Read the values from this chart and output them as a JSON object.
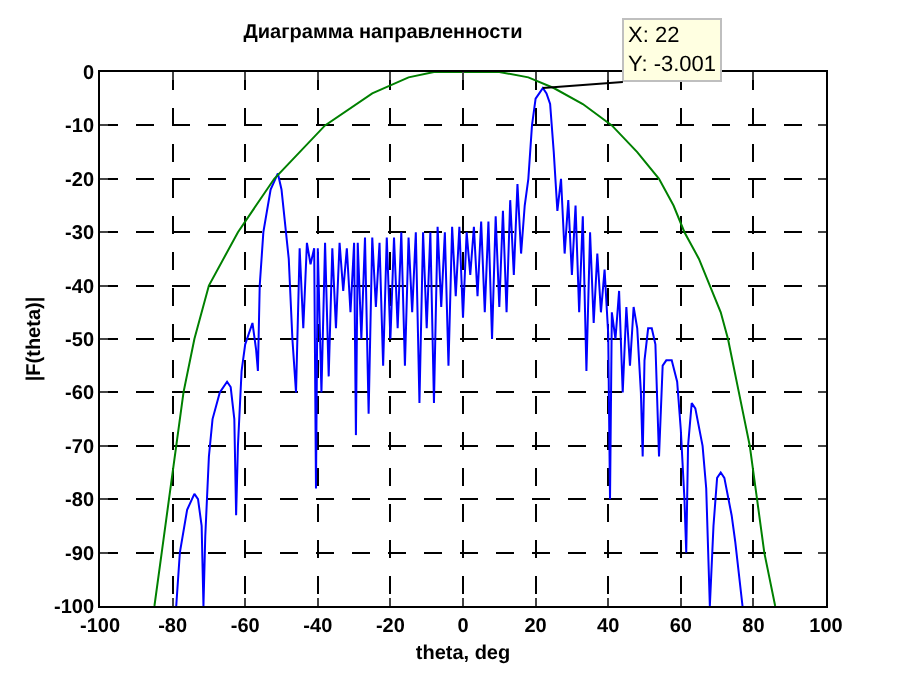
{
  "chart_data": {
    "type": "line",
    "title": "Диаграмма направленности",
    "xlabel": "theta, deg",
    "ylabel": "|F(theta)|",
    "xlim": [
      -100,
      100
    ],
    "xticks": [
      -100,
      -80,
      -60,
      -40,
      -20,
      0,
      20,
      40,
      60,
      80,
      100
    ],
    "ylim": [
      -100,
      0
    ],
    "yticks": [
      -100,
      -90,
      -80,
      -70,
      -60,
      -50,
      -40,
      -30,
      -20,
      -10,
      0
    ],
    "grid": true,
    "line_style": "solid",
    "annotations": [
      {
        "text": "X: 22\nY: -3.001",
        "x": 22,
        "y": -3.001
      }
    ],
    "series": [
      {
        "color": "#0000ff",
        "x": [
          -79,
          -78,
          -76,
          -74,
          -73,
          -72,
          -71.5,
          -71,
          -70,
          -69,
          -67,
          -65,
          -64,
          -63,
          -62.5,
          -62,
          -61,
          -60,
          -58,
          -57,
          -56.5,
          -56,
          -55,
          -53,
          -51,
          -50,
          -48,
          -47,
          -46,
          -45,
          -44,
          -43,
          -42,
          -41,
          -40.5,
          -40,
          -39,
          -38,
          -37,
          -36,
          -35,
          -34,
          -33,
          -32,
          -31,
          -30,
          -29.5,
          -29,
          -28,
          -27,
          -26,
          -25,
          -24,
          -23,
          -22,
          -21,
          -20,
          -19,
          -18,
          -17,
          -16,
          -15,
          -14,
          -13,
          -12,
          -11,
          -10,
          -9,
          -8,
          -7,
          -6,
          -5,
          -4,
          -3,
          -2,
          -1,
          0,
          1,
          2,
          3,
          4,
          5,
          6,
          7,
          8,
          9,
          10,
          11,
          12,
          13,
          14,
          15,
          16,
          17,
          18,
          19,
          20,
          21,
          22,
          23,
          24,
          25,
          26,
          27,
          28,
          29,
          30,
          31,
          32,
          33,
          34,
          35,
          36,
          37,
          38,
          39,
          40,
          40.5,
          41,
          42,
          43,
          44,
          45,
          46,
          47,
          48,
          49,
          49.5,
          50,
          51,
          52,
          53,
          54,
          55,
          56,
          57.5,
          59,
          60,
          61,
          61.5,
          62,
          63,
          64,
          66,
          67,
          68,
          69,
          70,
          71,
          72,
          74,
          75,
          77
        ],
        "values": [
          -100,
          -90,
          -82,
          -79,
          -80,
          -85,
          -100,
          -87,
          -72,
          -65,
          -60,
          -58,
          -59,
          -65,
          -83,
          -70,
          -56,
          -51,
          -47,
          -52,
          -56,
          -40,
          -30,
          -22,
          -19,
          -22,
          -35,
          -50,
          -60,
          -33,
          -48,
          -32,
          -36,
          -33,
          -78,
          -33,
          -60,
          -32,
          -57,
          -33,
          -48,
          -32,
          -41,
          -33,
          -45,
          -32,
          -68,
          -32,
          -50,
          -31,
          -64,
          -31,
          -44,
          -32,
          -55,
          -31,
          -50,
          -31,
          -48,
          -30,
          -55,
          -31,
          -45,
          -30,
          -62,
          -30,
          -48,
          -30,
          -62,
          -29,
          -44,
          -30,
          -55,
          -29,
          -42,
          -29,
          -46,
          -30,
          -38,
          -29,
          -42,
          -28,
          -45,
          -28,
          -50,
          -27,
          -44,
          -26,
          -45,
          -24,
          -38,
          -21,
          -34,
          -25,
          -20,
          -10,
          -5,
          -4,
          -3.001,
          -4,
          -6,
          -15,
          -26,
          -20,
          -34,
          -24,
          -38,
          -25,
          -45,
          -27,
          -56,
          -30,
          -47,
          -34,
          -45,
          -37,
          -49,
          -80,
          -45,
          -50,
          -41,
          -60,
          -44,
          -55,
          -44,
          -48,
          -60,
          -72,
          -54,
          -48,
          -48,
          -51,
          -72,
          -55,
          -54,
          -54,
          -58,
          -67,
          -80,
          -90,
          -70,
          -62,
          -63,
          -70,
          -78,
          -100,
          -85,
          -76,
          -75,
          -76,
          -83,
          -88,
          -100
        ]
      },
      {
        "color": "#008000",
        "x": [
          -85,
          -83,
          -81,
          -79,
          -77,
          -74,
          -70,
          -62,
          -52,
          -38,
          -25,
          -15,
          -8,
          0,
          10,
          18,
          25,
          33,
          41,
          48,
          54,
          58,
          61,
          65,
          68,
          71,
          73,
          76,
          79,
          81,
          83,
          86
        ],
        "values": [
          -100,
          -90,
          -80,
          -70,
          -60,
          -50,
          -40,
          -30,
          -20,
          -10,
          -4,
          -1,
          0,
          0,
          0,
          -1,
          -3,
          -6,
          -10,
          -15,
          -20,
          -25,
          -30,
          -35,
          -40,
          -45,
          -50,
          -60,
          -70,
          -80,
          -90,
          -100
        ]
      }
    ]
  }
}
